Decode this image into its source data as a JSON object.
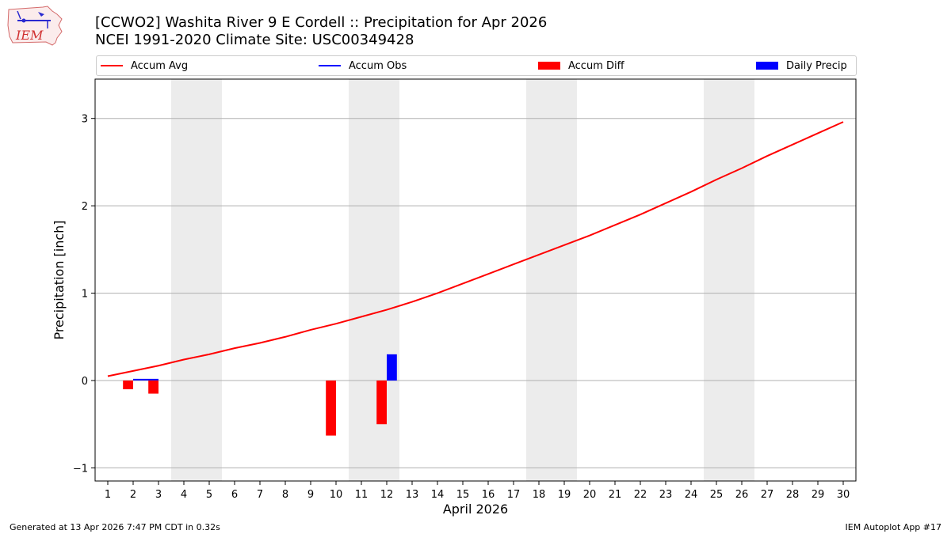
{
  "header": {
    "title_line1": "[CCWO2] Washita River 9 E Cordell :: Precipitation for Apr 2026",
    "title_line2": "NCEI 1991-2020 Climate Site: USC00349428",
    "logo_text": "IEM"
  },
  "legend": {
    "accum_avg": "Accum Avg",
    "accum_obs": "Accum Obs",
    "accum_diff": "Accum Diff",
    "daily_precip": "Daily Precip"
  },
  "colors": {
    "accum_avg": "#ff0000",
    "accum_obs": "#0000ff",
    "accum_diff": "#ff0000",
    "daily_precip": "#0000ff",
    "weekend": "#ececec",
    "grid": "#b0b0b0"
  },
  "chart_data": {
    "type": "bar",
    "xlabel": "April 2026",
    "ylabel": "Precipitation [inch]",
    "xlim": [
      0.5,
      30.5
    ],
    "ylim": [
      -1.15,
      3.45
    ],
    "yticks": [
      -1,
      0,
      1,
      2,
      3
    ],
    "ytick_labels": [
      "−1",
      "0",
      "1",
      "2",
      "3"
    ],
    "days": [
      1,
      2,
      3,
      4,
      5,
      6,
      7,
      8,
      9,
      10,
      11,
      12,
      13,
      14,
      15,
      16,
      17,
      18,
      19,
      20,
      21,
      22,
      23,
      24,
      25,
      26,
      27,
      28,
      29,
      30
    ],
    "weekend_spans": [
      [
        3.5,
        5.5
      ],
      [
        10.5,
        12.5
      ],
      [
        17.5,
        19.5
      ],
      [
        24.5,
        26.5
      ]
    ],
    "grid": true,
    "legend_position": "top",
    "series": [
      {
        "name": "Accum Avg",
        "kind": "line",
        "x": [
          1,
          2,
          3,
          4,
          5,
          6,
          7,
          8,
          9,
          10,
          11,
          12,
          13,
          14,
          15,
          16,
          17,
          18,
          19,
          20,
          21,
          22,
          23,
          24,
          25,
          26,
          27,
          28,
          29,
          30
        ],
        "values": [
          0.05,
          0.11,
          0.17,
          0.24,
          0.3,
          0.37,
          0.43,
          0.5,
          0.58,
          0.65,
          0.73,
          0.81,
          0.9,
          1.0,
          1.11,
          1.22,
          1.33,
          1.44,
          1.55,
          1.66,
          1.78,
          1.9,
          2.03,
          2.16,
          2.3,
          2.43,
          2.57,
          2.7,
          2.83,
          2.96
        ]
      },
      {
        "name": "Accum Obs",
        "kind": "line",
        "x": [
          2,
          3
        ],
        "values": [
          0.01,
          0.01
        ]
      },
      {
        "name": "Accum Diff",
        "kind": "bar",
        "x": [
          2,
          3,
          10,
          12
        ],
        "values": [
          -0.1,
          -0.15,
          -0.63,
          -0.5
        ]
      },
      {
        "name": "Daily Precip",
        "kind": "bar",
        "x": [
          12
        ],
        "values": [
          0.3
        ]
      }
    ]
  },
  "footer": {
    "generated": "Generated at 13 Apr 2026 7:47 PM CDT in 0.32s",
    "app": "IEM Autoplot App #17"
  }
}
